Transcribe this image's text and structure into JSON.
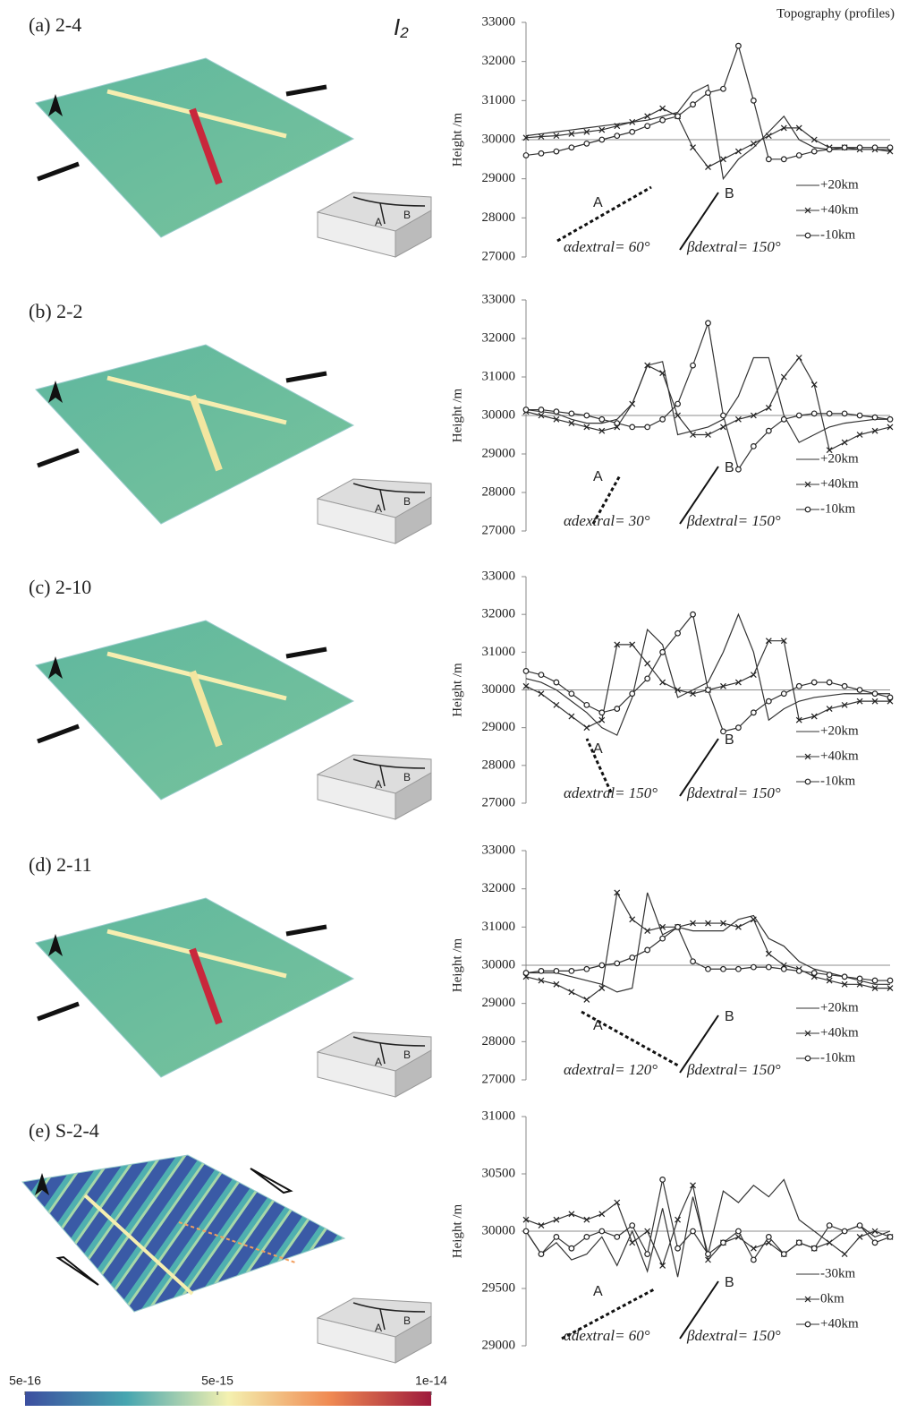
{
  "invariant_label": {
    "symbol": "I",
    "subscript": "2"
  },
  "inset_labels": [
    "A",
    "B"
  ],
  "colorbar": {
    "lim": [
      5e-16,
      1e-14
    ],
    "ticks": [
      {
        "value": 5e-16,
        "label": "5e-16"
      },
      {
        "value": 5e-15,
        "label": "5e-15"
      },
      {
        "value": 1e-14,
        "label": "1e-14"
      }
    ]
  },
  "chart_data": [
    {
      "type": "line",
      "panel_label": "(a) 2-4",
      "title": "Topography (profiles)",
      "ylabel": "Height /m",
      "ylim": [
        27000,
        33000
      ],
      "yticks": [
        27000,
        28000,
        29000,
        30000,
        31000,
        32000,
        33000
      ],
      "reference_line": 30000,
      "annotations": {
        "label_a": "A",
        "label_b": "B",
        "alpha": "αdextral= 60°",
        "beta": "βdextral= 150°"
      },
      "series": [
        {
          "name": "+20km",
          "color": "#333333",
          "marker": "none",
          "values": [
            30100,
            30150,
            30200,
            30250,
            30300,
            30350,
            30400,
            30450,
            30500,
            30600,
            30700,
            31200,
            31400,
            29000,
            29500,
            29800,
            30200,
            30600,
            30000,
            29800,
            29750,
            29750,
            29750,
            29750,
            29750
          ]
        },
        {
          "name": "+40km",
          "color": "#333333",
          "marker": "x",
          "values": [
            30050,
            30080,
            30100,
            30150,
            30200,
            30250,
            30350,
            30450,
            30600,
            30800,
            30600,
            29800,
            29300,
            29500,
            29700,
            29900,
            30100,
            30300,
            30300,
            30000,
            29800,
            29800,
            29750,
            29750,
            29700
          ]
        },
        {
          "name": "-10km",
          "color": "#333333",
          "marker": "o",
          "values": [
            29600,
            29650,
            29700,
            29800,
            29900,
            30000,
            30100,
            30200,
            30350,
            30500,
            30600,
            30900,
            31200,
            31300,
            32400,
            31000,
            29500,
            29500,
            29600,
            29700,
            29750,
            29800,
            29800,
            29800,
            29800
          ]
        }
      ]
    },
    {
      "type": "line",
      "panel_label": "(b) 2-2",
      "ylabel": "Height /m",
      "ylim": [
        27000,
        33000
      ],
      "yticks": [
        27000,
        28000,
        29000,
        30000,
        31000,
        32000,
        33000
      ],
      "reference_line": 30000,
      "annotations": {
        "label_a": "A",
        "label_b": "B",
        "alpha": "αdextral= 30°",
        "beta": "βdextral= 150°"
      },
      "series": [
        {
          "name": "+20km",
          "color": "#333333",
          "marker": "none",
          "values": [
            30150,
            30100,
            30050,
            29900,
            29800,
            29800,
            29900,
            30300,
            31300,
            31400,
            29500,
            29600,
            29700,
            29900,
            30500,
            31500,
            31500,
            30000,
            29300,
            29500,
            29700,
            29800,
            29850,
            29900,
            29900
          ]
        },
        {
          "name": "+40km",
          "color": "#333333",
          "marker": "x",
          "values": [
            30100,
            30000,
            29900,
            29800,
            29700,
            29600,
            29700,
            30300,
            31300,
            31100,
            30000,
            29500,
            29500,
            29700,
            29900,
            30000,
            30200,
            31000,
            31500,
            30800,
            29100,
            29300,
            29500,
            29600,
            29700
          ]
        },
        {
          "name": "-10km",
          "color": "#333333",
          "marker": "o",
          "values": [
            30150,
            30150,
            30100,
            30050,
            30000,
            29900,
            29800,
            29700,
            29700,
            29900,
            30300,
            31300,
            32400,
            30000,
            28600,
            29200,
            29600,
            29900,
            30000,
            30050,
            30050,
            30050,
            30000,
            29950,
            29900
          ]
        }
      ]
    },
    {
      "type": "line",
      "panel_label": "(c) 2-10",
      "ylabel": "Height /m",
      "ylim": [
        27000,
        33000
      ],
      "yticks": [
        27000,
        28000,
        29000,
        30000,
        31000,
        32000,
        33000
      ],
      "reference_line": 30000,
      "annotations": {
        "label_a": "A",
        "label_b": "B",
        "alpha": "αdextral= 150°",
        "beta": "βdextral= 150°"
      },
      "series": [
        {
          "name": "+20km",
          "color": "#333333",
          "marker": "none",
          "values": [
            30300,
            30200,
            30000,
            29700,
            29400,
            29000,
            28800,
            29800,
            31600,
            31200,
            29800,
            30000,
            30200,
            31000,
            32000,
            31000,
            29200,
            29500,
            29700,
            29800,
            29850,
            29900,
            29900,
            29900,
            29900
          ]
        },
        {
          "name": "+40km",
          "color": "#333333",
          "marker": "x",
          "values": [
            30100,
            29900,
            29600,
            29300,
            29000,
            29200,
            31200,
            31200,
            30700,
            30200,
            30000,
            29900,
            30000,
            30100,
            30200,
            30400,
            31300,
            31300,
            29200,
            29300,
            29500,
            29600,
            29700,
            29700,
            29700
          ]
        },
        {
          "name": "-10km",
          "color": "#333333",
          "marker": "o",
          "values": [
            30500,
            30400,
            30200,
            29900,
            29600,
            29400,
            29500,
            29900,
            30300,
            31000,
            31500,
            32000,
            30000,
            28900,
            29000,
            29400,
            29700,
            29900,
            30100,
            30200,
            30200,
            30100,
            30000,
            29900,
            29800
          ]
        }
      ]
    },
    {
      "type": "line",
      "panel_label": "(d) 2-11",
      "ylabel": "Height /m",
      "ylim": [
        27000,
        33000
      ],
      "yticks": [
        27000,
        28000,
        29000,
        30000,
        31000,
        32000,
        33000
      ],
      "reference_line": 30000,
      "annotations": {
        "label_a": "A",
        "label_b": "B",
        "alpha": "αdextral= 120°",
        "beta": "βdextral= 150°"
      },
      "series": [
        {
          "name": "+20km",
          "color": "#333333",
          "marker": "none",
          "values": [
            29800,
            29800,
            29800,
            29700,
            29600,
            29500,
            29300,
            29400,
            31900,
            30800,
            31000,
            30900,
            30900,
            30900,
            31200,
            31300,
            30700,
            30500,
            30100,
            29900,
            29800,
            29700,
            29600,
            29500,
            29500
          ]
        },
        {
          "name": "+40km",
          "color": "#333333",
          "marker": "x",
          "values": [
            29700,
            29600,
            29500,
            29300,
            29100,
            29400,
            31900,
            31200,
            30900,
            31000,
            31000,
            31100,
            31100,
            31100,
            31000,
            31200,
            30300,
            30000,
            29900,
            29700,
            29600,
            29500,
            29500,
            29400,
            29400
          ]
        },
        {
          "name": "-10km",
          "color": "#333333",
          "marker": "o",
          "values": [
            29800,
            29850,
            29850,
            29850,
            29900,
            30000,
            30050,
            30200,
            30400,
            30700,
            31000,
            30100,
            29900,
            29900,
            29900,
            29950,
            29950,
            29900,
            29850,
            29800,
            29750,
            29700,
            29650,
            29600,
            29600
          ]
        }
      ]
    },
    {
      "type": "line",
      "panel_label": "(e) S-2-4",
      "ylabel": "Height /m",
      "ylim": [
        29000,
        31000
      ],
      "yticks": [
        29000,
        29500,
        30000,
        30500,
        31000
      ],
      "reference_line": 30000,
      "annotations": {
        "label_a": "A",
        "label_b": "B",
        "alpha": "αdextral= 60°",
        "beta": "βdextral= 150°"
      },
      "series": [
        {
          "name": "-30km",
          "color": "#333333",
          "marker": "none",
          "values": [
            30000,
            29800,
            29900,
            29750,
            29800,
            29950,
            29700,
            30000,
            29650,
            30200,
            29600,
            30300,
            29800,
            30350,
            30250,
            30400,
            30300,
            30450,
            30100,
            30000,
            29900,
            30000,
            30050,
            29950,
            30000
          ]
        },
        {
          "name": "0km",
          "color": "#333333",
          "marker": "x",
          "values": [
            30100,
            30050,
            30100,
            30150,
            30100,
            30150,
            30250,
            29900,
            30000,
            29700,
            30100,
            30400,
            29750,
            29900,
            29950,
            29850,
            29900,
            29800,
            29900,
            29850,
            29900,
            29800,
            29950,
            30000,
            29950
          ]
        },
        {
          "name": "+40km",
          "color": "#333333",
          "marker": "o",
          "values": [
            30000,
            29800,
            29950,
            29850,
            29950,
            30000,
            29950,
            30050,
            29800,
            30450,
            29850,
            30000,
            29800,
            29900,
            30000,
            29750,
            29950,
            29800,
            29900,
            29850,
            30050,
            30000,
            30050,
            29900,
            29950
          ]
        }
      ]
    }
  ]
}
